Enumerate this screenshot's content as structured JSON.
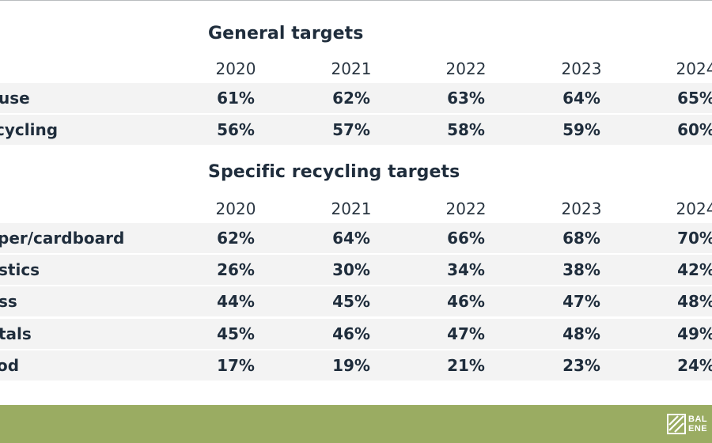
{
  "general": {
    "title": "General targets",
    "years": [
      "2020",
      "2021",
      "2022",
      "2023",
      "2024"
    ],
    "rows": [
      {
        "label": "use",
        "values": [
          "61%",
          "62%",
          "63%",
          "64%",
          "65%"
        ]
      },
      {
        "label": "cycling",
        "values": [
          "56%",
          "57%",
          "58%",
          "59%",
          "60%"
        ]
      }
    ]
  },
  "specific": {
    "title": "Specific recycling targets",
    "years": [
      "2020",
      "2021",
      "2022",
      "2023",
      "2024"
    ],
    "rows": [
      {
        "label": "per/cardboard",
        "values": [
          "62%",
          "64%",
          "66%",
          "68%",
          "70%"
        ]
      },
      {
        "label": "stics",
        "values": [
          "26%",
          "30%",
          "34%",
          "38%",
          "42%"
        ]
      },
      {
        "label": "ss",
        "values": [
          "44%",
          "45%",
          "46%",
          "47%",
          "48%"
        ]
      },
      {
        "label": "tals",
        "values": [
          "45%",
          "46%",
          "47%",
          "48%",
          "49%"
        ]
      },
      {
        "label": "od",
        "values": [
          "17%",
          "19%",
          "21%",
          "23%",
          "24%"
        ]
      }
    ]
  },
  "footer": {
    "logo_line1": "BAL",
    "logo_line2": "ENE",
    "logo_icon": "logo-mark-icon",
    "background_color": "#9aac62"
  }
}
